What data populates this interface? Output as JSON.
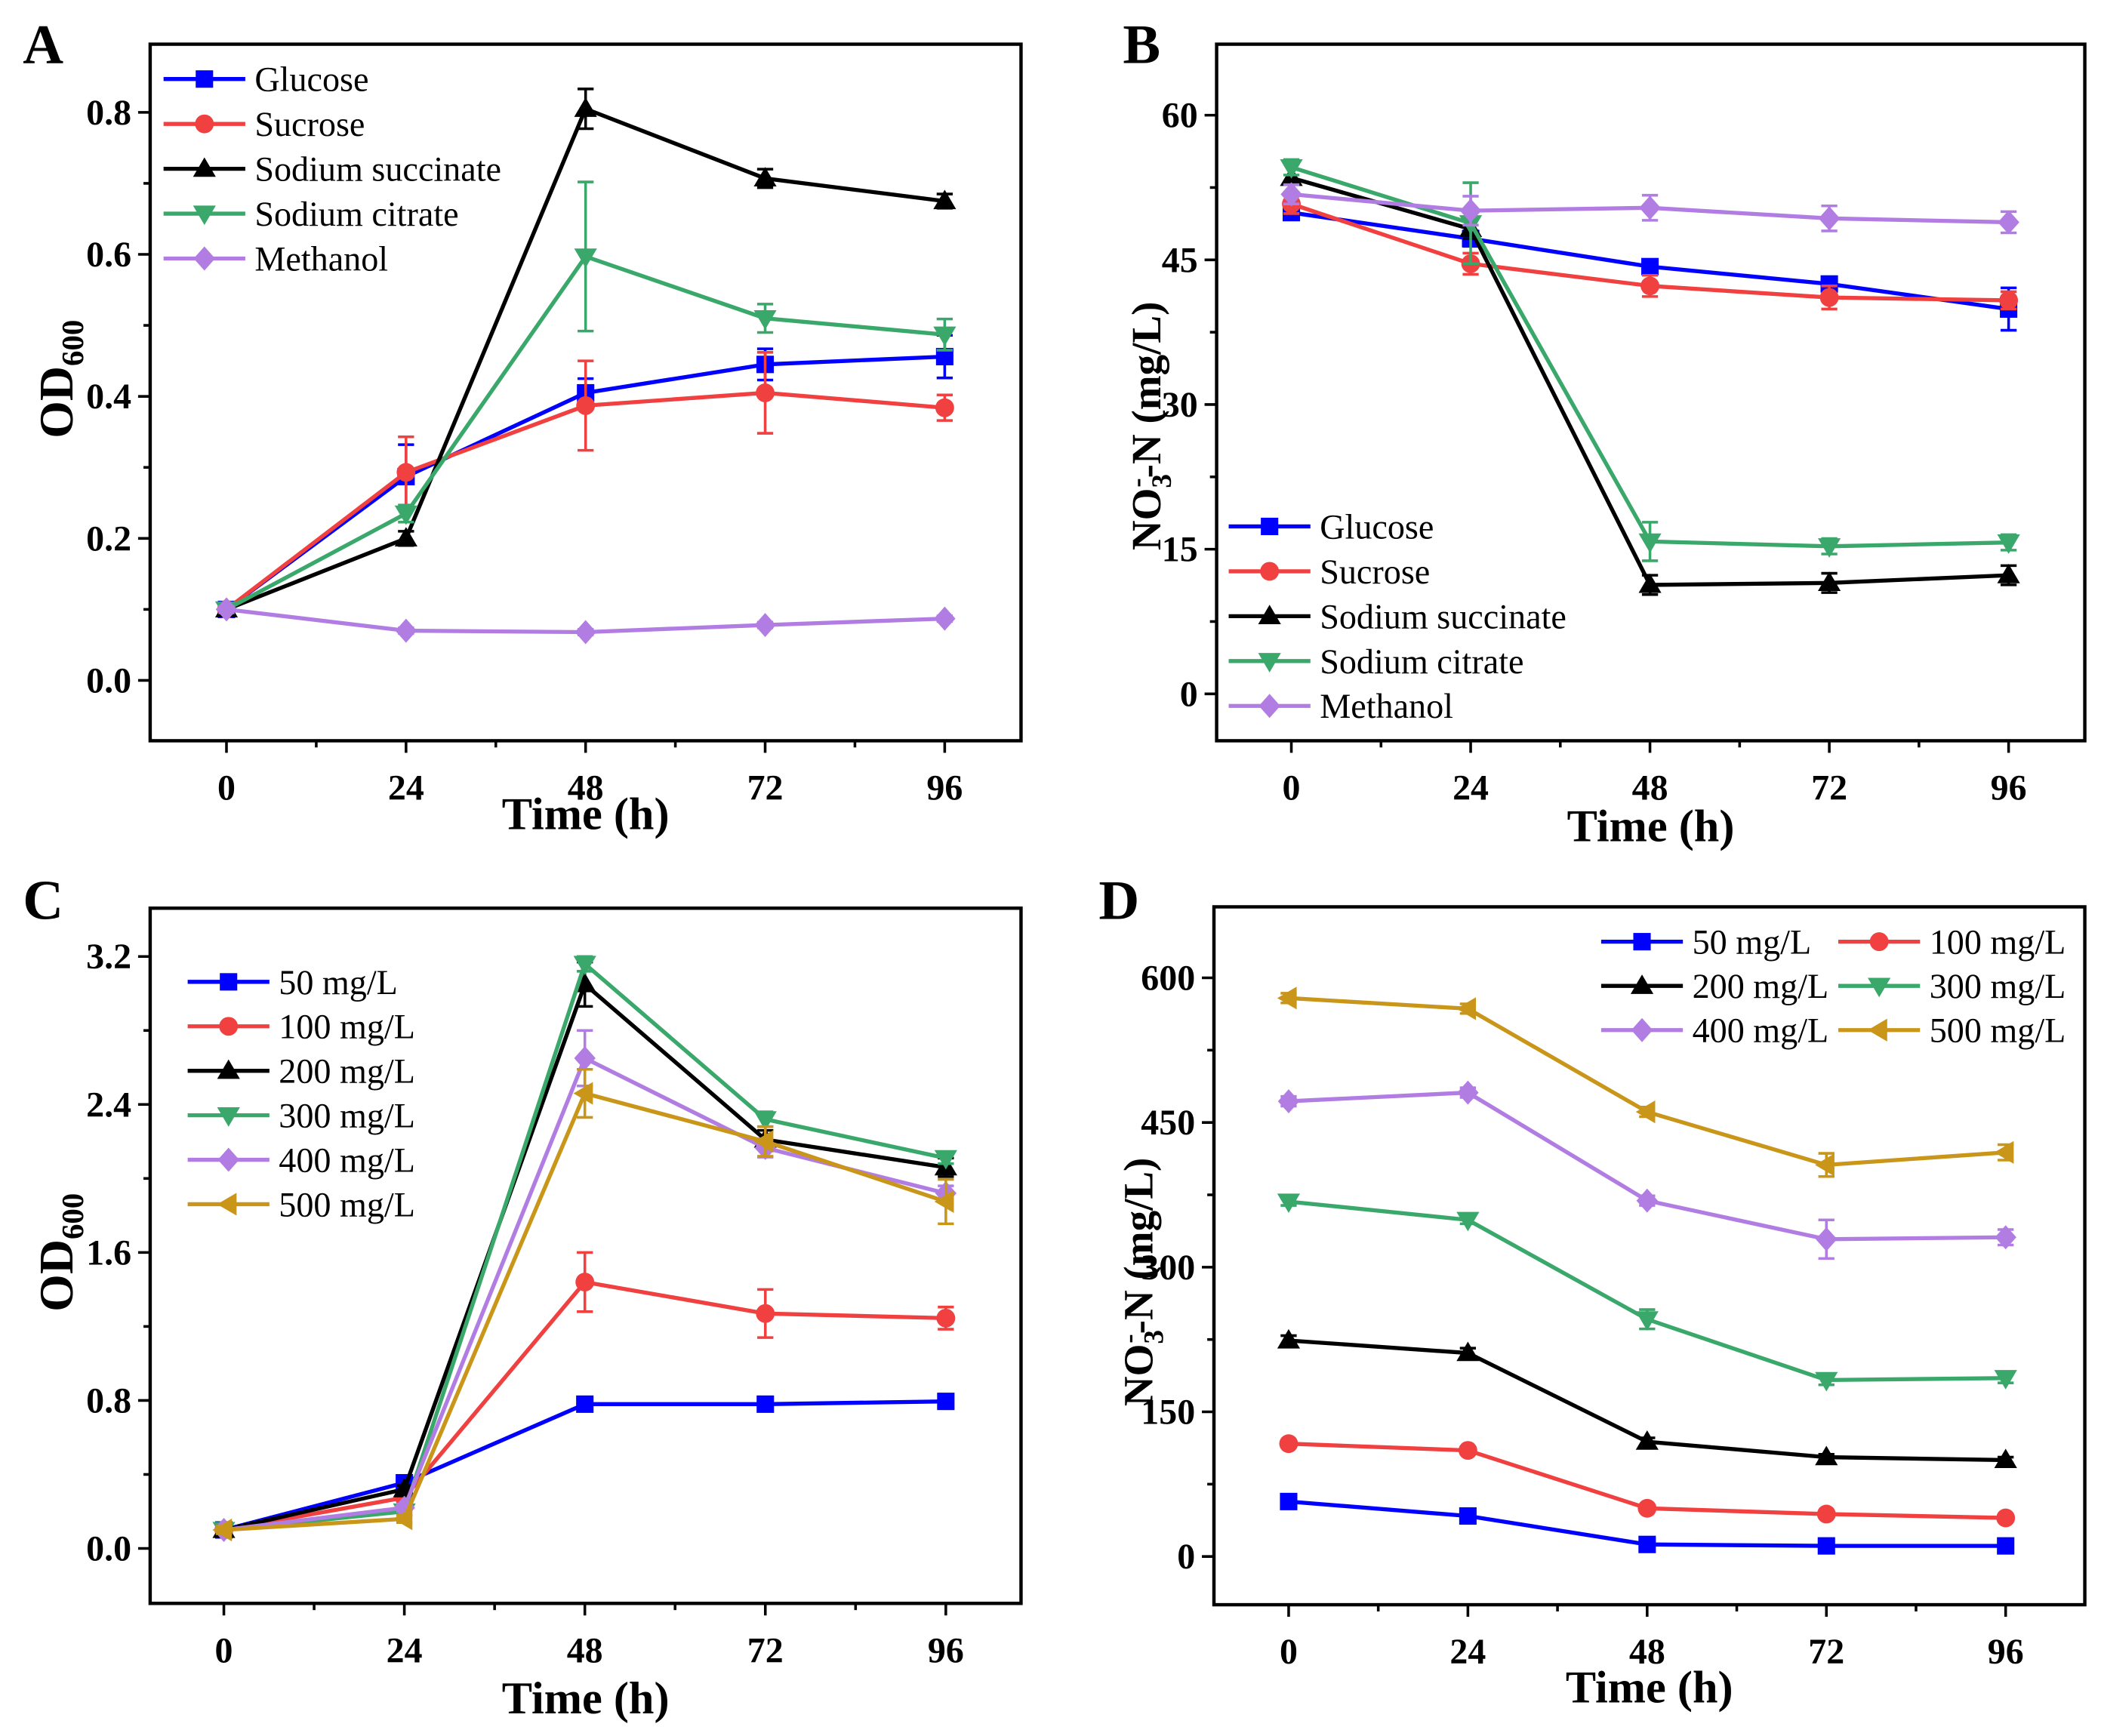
{
  "chart_data": [
    {
      "panel_label": "A",
      "type": "line",
      "xlabel": "Time (h)",
      "ylabel": {
        "base": "OD",
        "sub": "600"
      },
      "x": [
        0,
        24,
        48,
        72,
        96
      ],
      "xticks": [
        0,
        24,
        48,
        72,
        96
      ],
      "xtick_labels": [
        "0",
        "24",
        "48",
        "72",
        "96"
      ],
      "yticks": [
        0,
        0.2,
        0.4,
        0.6,
        0.8
      ],
      "ytick_labels": [
        "0.0",
        "0.2",
        "0.4",
        "0.6",
        "0.8"
      ],
      "xlim": [
        -10.2,
        106.2
      ],
      "ylim": [
        -0.085,
        0.896
      ],
      "grid": false,
      "legend": "top-left",
      "series": [
        {
          "name": "Glucose",
          "color": "#0000ff",
          "marker": "square",
          "values": [
            0.1,
            0.287,
            0.405,
            0.445,
            0.456
          ],
          "errors": [
            0.005,
            0.045,
            0.02,
            0.022,
            0.03
          ]
        },
        {
          "name": "Sucrose",
          "color": "#f04040",
          "marker": "circle",
          "values": [
            0.1,
            0.293,
            0.387,
            0.405,
            0.384
          ],
          "errors": [
            0.005,
            0.05,
            0.063,
            0.057,
            0.018
          ]
        },
        {
          "name": "Sodium succinate",
          "color": "#000000",
          "marker": "triangle-up",
          "values": [
            0.1,
            0.2,
            0.805,
            0.707,
            0.675
          ],
          "errors": [
            0.005,
            0.01,
            0.028,
            0.013,
            0.01
          ]
        },
        {
          "name": "Sodium citrate",
          "color": "#3aa86b",
          "marker": "triangle-down",
          "values": [
            0.1,
            0.235,
            0.597,
            0.51,
            0.487
          ],
          "errors": [
            0.005,
            0.012,
            0.105,
            0.02,
            0.022
          ]
        },
        {
          "name": "Methanol",
          "color": "#b17de3",
          "marker": "diamond",
          "values": [
            0.1,
            0.07,
            0.068,
            0.078,
            0.087
          ],
          "errors": [
            0.004,
            0.004,
            0.004,
            0.004,
            0.004
          ]
        }
      ]
    },
    {
      "panel_label": "B",
      "type": "line",
      "xlabel": "Time (h)",
      "ylabel": {
        "base": "NO",
        "sub": "3",
        "sup": "-",
        "rest": "-N (mg/L)"
      },
      "x": [
        0,
        24,
        48,
        72,
        96
      ],
      "xticks": [
        0,
        24,
        48,
        72,
        96
      ],
      "xtick_labels": [
        "0",
        "24",
        "48",
        "72",
        "96"
      ],
      "yticks": [
        0,
        15,
        30,
        45,
        60
      ],
      "ytick_labels": [
        "0",
        "15",
        "30",
        "45",
        "60"
      ],
      "xlim": [
        -10.0,
        106.2
      ],
      "ylim": [
        -4.86,
        67.36
      ],
      "grid": false,
      "legend": "bottom-left",
      "series": [
        {
          "name": "Glucose",
          "color": "#0000ff",
          "marker": "square",
          "values": [
            49.9,
            47.2,
            44.3,
            42.5,
            39.9
          ],
          "errors": [
            0.6,
            0.8,
            0.6,
            0.6,
            2.2
          ]
        },
        {
          "name": "Sucrose",
          "color": "#f04040",
          "marker": "circle",
          "values": [
            50.8,
            44.6,
            42.3,
            41.1,
            40.8
          ],
          "errors": [
            1.0,
            1.1,
            1.1,
            1.2,
            0.9
          ]
        },
        {
          "name": "Sodium succinate",
          "color": "#000000",
          "marker": "triangle-up",
          "values": [
            53.5,
            48.2,
            11.3,
            11.5,
            12.3
          ],
          "errors": [
            1.5,
            1.0,
            1.0,
            1.0,
            1.0
          ]
        },
        {
          "name": "Sodium citrate",
          "color": "#3aa86b",
          "marker": "triangle-down",
          "values": [
            54.6,
            48.8,
            15.8,
            15.3,
            15.7
          ],
          "errors": [
            0.8,
            4.2,
            2.0,
            0.8,
            0.8
          ]
        },
        {
          "name": "Methanol",
          "color": "#b17de3",
          "marker": "diamond",
          "values": [
            51.8,
            50.1,
            50.4,
            49.3,
            48.9
          ],
          "errors": [
            1.0,
            1.5,
            1.3,
            1.3,
            1.1
          ]
        }
      ]
    },
    {
      "panel_label": "C",
      "type": "line",
      "xlabel": "Time (h)",
      "ylabel": {
        "base": "OD",
        "sub": "600"
      },
      "x": [
        0,
        24,
        48,
        72,
        96
      ],
      "xticks": [
        0,
        24,
        48,
        72,
        96
      ],
      "xtick_labels": [
        "0",
        "24",
        "48",
        "72",
        "96"
      ],
      "yticks": [
        0,
        0.8,
        1.6,
        2.4,
        3.2
      ],
      "ytick_labels": [
        "0.0",
        "0.8",
        "1.6",
        "2.4",
        "3.2"
      ],
      "xlim": [
        -9.8,
        106.0
      ],
      "ylim": [
        -0.297,
        3.461
      ],
      "grid": false,
      "legend": "top-left",
      "series": [
        {
          "name": "50 mg/L",
          "color": "#0000ff",
          "marker": "square",
          "values": [
            0.1,
            0.355,
            0.78,
            0.78,
            0.795
          ],
          "errors": [
            0.02,
            0.02,
            0.02,
            0.02,
            0.02
          ]
        },
        {
          "name": "100 mg/L",
          "color": "#f04040",
          "marker": "circle",
          "values": [
            0.1,
            0.275,
            1.44,
            1.27,
            1.245
          ],
          "errors": [
            0.02,
            0.02,
            0.16,
            0.13,
            0.06
          ]
        },
        {
          "name": "200 mg/L",
          "color": "#000000",
          "marker": "triangle-up",
          "values": [
            0.1,
            0.32,
            3.05,
            2.21,
            2.06
          ],
          "errors": [
            0.02,
            0.02,
            0.12,
            0.05,
            0.05
          ]
        },
        {
          "name": "300 mg/L",
          "color": "#3aa86b",
          "marker": "triangle-down",
          "values": [
            0.1,
            0.2,
            3.16,
            2.32,
            2.11
          ],
          "errors": [
            0.02,
            0.02,
            0.04,
            0.04,
            0.03
          ]
        },
        {
          "name": "400 mg/L",
          "color": "#b17de3",
          "marker": "diamond",
          "values": [
            0.1,
            0.22,
            2.65,
            2.165,
            1.92
          ],
          "errors": [
            0.02,
            0.02,
            0.15,
            0.05,
            0.04
          ]
        },
        {
          "name": "500 mg/L",
          "color": "#c9961a",
          "marker": "triangle-left",
          "values": [
            0.1,
            0.16,
            2.46,
            2.2,
            1.875
          ],
          "errors": [
            0.02,
            0.02,
            0.13,
            0.08,
            0.12
          ]
        }
      ]
    },
    {
      "panel_label": "D",
      "type": "line",
      "xlabel": "Time (h)",
      "ylabel": {
        "base": "NO",
        "sub": "3",
        "sup": "-",
        "rest": "-N (mg/L)"
      },
      "x": [
        0,
        24,
        48,
        72,
        96
      ],
      "xticks": [
        0,
        24,
        48,
        72,
        96
      ],
      "xtick_labels": [
        "0",
        "24",
        "48",
        "72",
        "96"
      ],
      "yticks": [
        0,
        150,
        300,
        450,
        600
      ],
      "ytick_labels": [
        "0",
        "150",
        "300",
        "450",
        "600"
      ],
      "xlim": [
        -10.0,
        106.6
      ],
      "ylim": [
        -50,
        673.6
      ],
      "grid": false,
      "legend": "top-right",
      "series": [
        {
          "name": "50 mg/L",
          "color": "#0000ff",
          "marker": "square",
          "values": [
            57,
            42,
            12.5,
            11,
            11
          ],
          "errors": [
            2,
            2,
            2,
            2,
            2
          ]
        },
        {
          "name": "100 mg/L",
          "color": "#f04040",
          "marker": "circle",
          "values": [
            117,
            110,
            50,
            44,
            40
          ],
          "errors": [
            3,
            3,
            3,
            3,
            3
          ]
        },
        {
          "name": "200 mg/L",
          "color": "#000000",
          "marker": "triangle-up",
          "values": [
            224,
            211,
            119,
            103,
            100
          ],
          "errors": [
            5,
            5,
            4,
            3,
            3
          ]
        },
        {
          "name": "300 mg/L",
          "color": "#3aa86b",
          "marker": "triangle-down",
          "values": [
            368,
            349,
            246,
            183,
            185
          ],
          "errors": [
            4,
            4,
            10,
            5,
            5
          ]
        },
        {
          "name": "400 mg/L",
          "color": "#b17de3",
          "marker": "diamond",
          "values": [
            472,
            481,
            369,
            329,
            331
          ],
          "errors": [
            5,
            5,
            5,
            20,
            8
          ]
        },
        {
          "name": "500 mg/L",
          "color": "#c9961a",
          "marker": "triangle-left",
          "values": [
            579,
            568,
            461,
            406,
            419
          ],
          "errors": [
            5,
            5,
            5,
            12,
            8
          ]
        }
      ]
    }
  ]
}
